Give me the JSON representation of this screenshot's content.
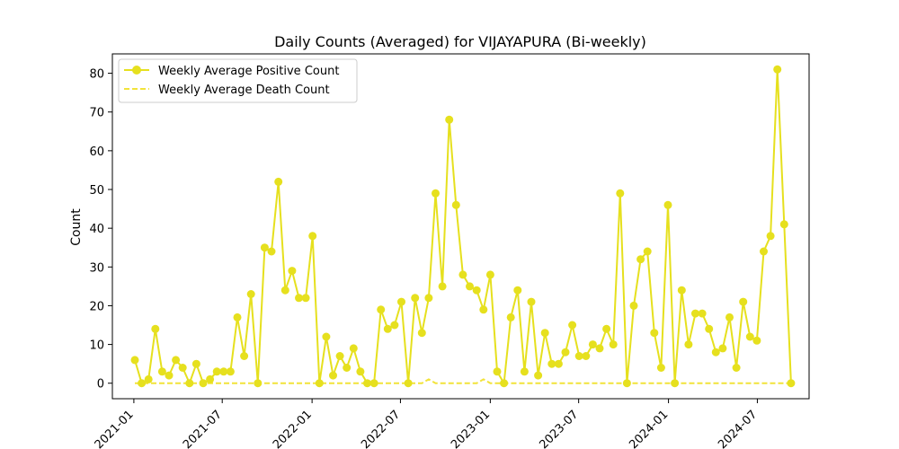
{
  "chart_data": {
    "type": "line",
    "title": "Daily Counts (Averaged) for VIJAYAPURA (Bi-weekly)",
    "xlabel": "",
    "ylabel": "Count",
    "ylim": [
      -4,
      85
    ],
    "yticks": [
      0,
      10,
      20,
      30,
      40,
      50,
      60,
      70,
      80
    ],
    "xlim": [
      "2020-11-18",
      "2024-10-15"
    ],
    "xticks": [
      {
        "date": "2021-01-01",
        "label": "2021-01"
      },
      {
        "date": "2021-07-01",
        "label": "2021-07"
      },
      {
        "date": "2022-01-01",
        "label": "2022-01"
      },
      {
        "date": "2022-07-01",
        "label": "2022-07"
      },
      {
        "date": "2023-01-01",
        "label": "2023-01"
      },
      {
        "date": "2023-07-01",
        "label": "2023-07"
      },
      {
        "date": "2024-01-01",
        "label": "2024-01"
      },
      {
        "date": "2024-07-01",
        "label": "2024-07"
      }
    ],
    "grid": false,
    "legend_position": "top-left",
    "colors": {
      "positive": "#e6e01e",
      "death": "#f2e33a"
    },
    "series": [
      {
        "name": "Weekly Average Positive Count",
        "style": "solid-marker",
        "points": [
          [
            "2021-01-03",
            6
          ],
          [
            "2021-01-17",
            0
          ],
          [
            "2021-01-31",
            1
          ],
          [
            "2021-02-14",
            14
          ],
          [
            "2021-02-28",
            3
          ],
          [
            "2021-03-14",
            2
          ],
          [
            "2021-03-28",
            6
          ],
          [
            "2021-04-11",
            4
          ],
          [
            "2021-04-25",
            0
          ],
          [
            "2021-05-09",
            5
          ],
          [
            "2021-05-23",
            0
          ],
          [
            "2021-06-06",
            1
          ],
          [
            "2021-06-20",
            3
          ],
          [
            "2021-07-04",
            3
          ],
          [
            "2021-07-18",
            3
          ],
          [
            "2021-08-01",
            17
          ],
          [
            "2021-08-15",
            7
          ],
          [
            "2021-08-29",
            23
          ],
          [
            "2021-09-12",
            0
          ],
          [
            "2021-09-26",
            35
          ],
          [
            "2021-10-10",
            34
          ],
          [
            "2021-10-24",
            52
          ],
          [
            "2021-11-07",
            24
          ],
          [
            "2021-11-21",
            29
          ],
          [
            "2021-12-05",
            22
          ],
          [
            "2021-12-19",
            22
          ],
          [
            "2022-01-02",
            38
          ],
          [
            "2022-01-16",
            0
          ],
          [
            "2022-01-30",
            12
          ],
          [
            "2022-02-13",
            2
          ],
          [
            "2022-02-27",
            7
          ],
          [
            "2022-03-13",
            4
          ],
          [
            "2022-03-27",
            9
          ],
          [
            "2022-04-10",
            3
          ],
          [
            "2022-04-24",
            0
          ],
          [
            "2022-05-08",
            0
          ],
          [
            "2022-05-22",
            19
          ],
          [
            "2022-06-05",
            14
          ],
          [
            "2022-06-19",
            15
          ],
          [
            "2022-07-03",
            21
          ],
          [
            "2022-07-17",
            0
          ],
          [
            "2022-07-31",
            22
          ],
          [
            "2022-08-14",
            13
          ],
          [
            "2022-08-28",
            22
          ],
          [
            "2022-09-11",
            49
          ],
          [
            "2022-09-25",
            25
          ],
          [
            "2022-10-09",
            68
          ],
          [
            "2022-10-23",
            46
          ],
          [
            "2022-11-06",
            28
          ],
          [
            "2022-11-20",
            25
          ],
          [
            "2022-12-04",
            24
          ],
          [
            "2022-12-18",
            19
          ],
          [
            "2023-01-01",
            28
          ],
          [
            "2023-01-15",
            3
          ],
          [
            "2023-01-29",
            0
          ],
          [
            "2023-02-12",
            17
          ],
          [
            "2023-02-26",
            24
          ],
          [
            "2023-03-12",
            3
          ],
          [
            "2023-03-26",
            21
          ],
          [
            "2023-04-09",
            2
          ],
          [
            "2023-04-23",
            13
          ],
          [
            "2023-05-07",
            5
          ],
          [
            "2023-05-21",
            5
          ],
          [
            "2023-06-04",
            8
          ],
          [
            "2023-06-18",
            15
          ],
          [
            "2023-07-02",
            7
          ],
          [
            "2023-07-16",
            7
          ],
          [
            "2023-07-30",
            10
          ],
          [
            "2023-08-13",
            9
          ],
          [
            "2023-08-27",
            14
          ],
          [
            "2023-09-10",
            10
          ],
          [
            "2023-09-24",
            49
          ],
          [
            "2023-10-08",
            0
          ],
          [
            "2023-10-22",
            20
          ],
          [
            "2023-11-05",
            32
          ],
          [
            "2023-11-19",
            34
          ],
          [
            "2023-12-03",
            13
          ],
          [
            "2023-12-17",
            4
          ],
          [
            "2023-12-31",
            46
          ],
          [
            "2024-01-14",
            0
          ],
          [
            "2024-01-28",
            24
          ],
          [
            "2024-02-11",
            10
          ],
          [
            "2024-02-25",
            18
          ],
          [
            "2024-03-10",
            18
          ],
          [
            "2024-03-24",
            14
          ],
          [
            "2024-04-07",
            8
          ],
          [
            "2024-04-21",
            9
          ],
          [
            "2024-05-05",
            17
          ],
          [
            "2024-05-19",
            4
          ],
          [
            "2024-06-02",
            21
          ],
          [
            "2024-06-16",
            12
          ],
          [
            "2024-06-30",
            11
          ],
          [
            "2024-07-14",
            34
          ],
          [
            "2024-07-28",
            38
          ],
          [
            "2024-08-11",
            81
          ],
          [
            "2024-08-25",
            41
          ],
          [
            "2024-09-08",
            0
          ]
        ]
      },
      {
        "name": "Weekly Average Death Count",
        "style": "dashed",
        "points": [
          [
            "2021-01-03",
            0
          ],
          [
            "2022-08-14",
            0
          ],
          [
            "2022-08-28",
            1
          ],
          [
            "2022-09-11",
            0
          ],
          [
            "2022-12-04",
            0
          ],
          [
            "2022-12-18",
            1
          ],
          [
            "2023-01-01",
            0
          ],
          [
            "2024-09-08",
            0
          ]
        ]
      }
    ]
  }
}
